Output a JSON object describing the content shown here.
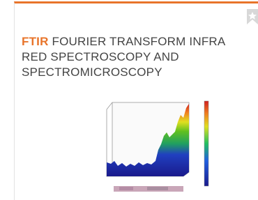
{
  "card": {
    "title_highlight": "FTIR",
    "title_rest": "FOURIER TRANSFORM INFRA RED SPECTROSCOPY AND SPECTROMICROSCOPY"
  }
}
